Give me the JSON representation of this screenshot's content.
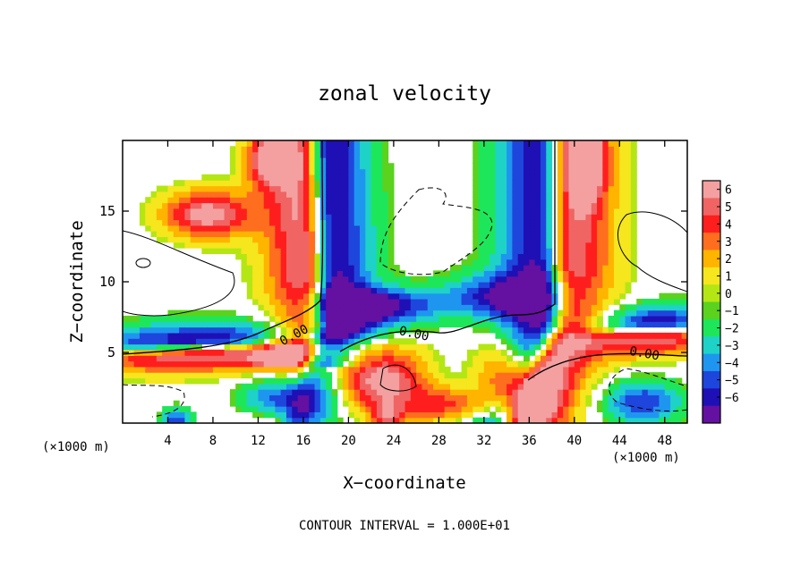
{
  "chart_data": {
    "type": "heatmap",
    "title": "zonal velocity",
    "xlabel": "X−coordinate",
    "ylabel": "Z−coordinate",
    "x_unit_label": "(×1000 m)",
    "y_unit_label": "(×1000 m)",
    "xlim": [
      0,
      50
    ],
    "ylim": [
      0,
      20
    ],
    "x_ticks": [
      4,
      8,
      12,
      16,
      20,
      24,
      28,
      32,
      36,
      40,
      44,
      48
    ],
    "y_ticks": [
      5,
      10,
      15
    ],
    "colorbar": {
      "levels": [
        6,
        5,
        4,
        3,
        2,
        1,
        0,
        -1,
        -2,
        -3,
        -4,
        -5,
        -6
      ],
      "labels": [
        "6",
        "5",
        "4",
        "3",
        "2",
        "1",
        "0",
        "−1",
        "−2",
        "−3",
        "−4",
        "−5",
        "−6"
      ],
      "colors": [
        "#f4a0a0",
        "#f06464",
        "#ff1e1e",
        "#ff6e1e",
        "#ffb400",
        "#f5e61e",
        "#b4e614",
        "#5ad21e",
        "#1ee65a",
        "#1ed2c8",
        "#1e96f0",
        "#1e46dc",
        "#1e10b4",
        "#6410a0"
      ]
    },
    "contour_labels": [
      {
        "text": "0.00",
        "x": 15.2,
        "z": 6.2,
        "angle": -28
      },
      {
        "text": "0.00",
        "x": 25.8,
        "z": 6.3,
        "angle": 12
      },
      {
        "text": "0.00",
        "x": 46.2,
        "z": 4.9,
        "angle": 10
      }
    ],
    "contour_interval_text": "CONTOUR INTERVAL =  1.000E+01"
  }
}
